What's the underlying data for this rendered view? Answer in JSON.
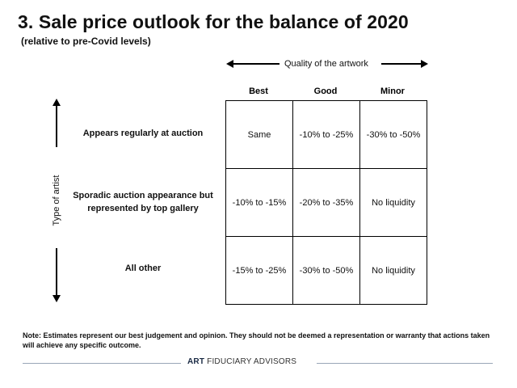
{
  "title": "3. Sale price outlook for the balance of 2020",
  "subtitle": "(relative to pre-Covid levels)",
  "axes": {
    "horizontal_label": "Quality of the artwork",
    "vertical_label": "Type of artist"
  },
  "columns": [
    "Best",
    "Good",
    "Minor"
  ],
  "rows": [
    {
      "label": "Appears regularly at auction",
      "cells": [
        "Same",
        "-10% to -25%",
        "-30% to -50%"
      ]
    },
    {
      "label_line1": "Sporadic auction appearance but",
      "label_line2": "represented by top gallery",
      "cells": [
        "-10% to -15%",
        "-20% to -35%",
        "No liquidity"
      ]
    },
    {
      "label": "All other",
      "cells": [
        "-15% to -25%",
        "-30% to -50%",
        "No liquidity"
      ]
    }
  ],
  "note": "Note: Estimates represent our best judgement and opinion. They should not be deemed a representation or warranty that actions taken will achieve any specific outcome.",
  "footer": {
    "brand_bold": "ART",
    "brand_rest": "FIDUCIARY ADVISORS"
  },
  "colors": {
    "text": "#111111",
    "footer_line": "#9aa7b8",
    "border": "#000000"
  }
}
